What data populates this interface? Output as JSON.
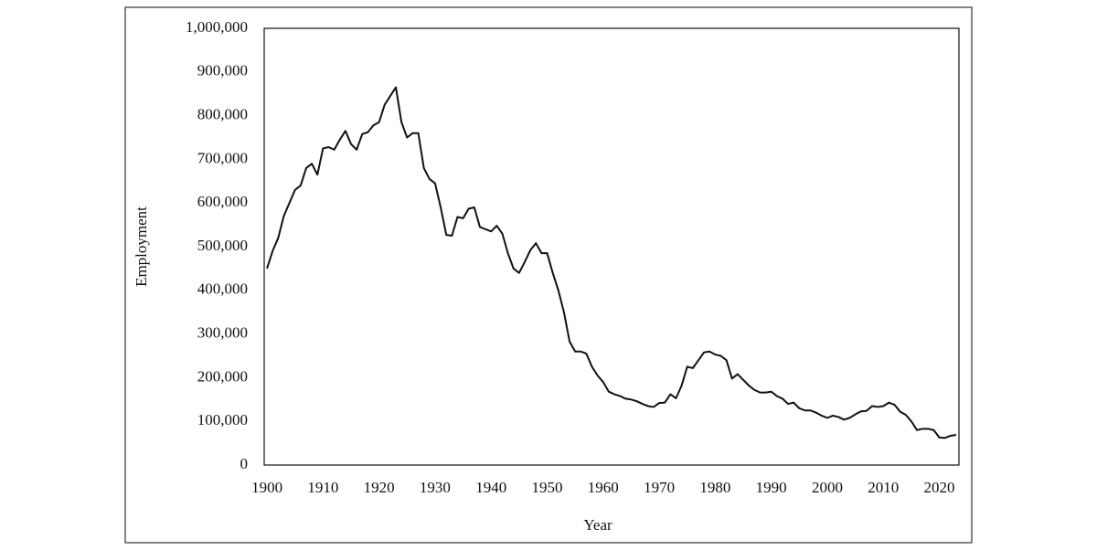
{
  "chart_data": {
    "type": "line",
    "x_label": "Year",
    "y_label": "Employment",
    "x": [
      1900,
      1901,
      1902,
      1903,
      1904,
      1905,
      1906,
      1907,
      1908,
      1909,
      1910,
      1911,
      1912,
      1913,
      1914,
      1915,
      1916,
      1917,
      1918,
      1919,
      1920,
      1921,
      1922,
      1923,
      1924,
      1925,
      1926,
      1927,
      1928,
      1929,
      1930,
      1931,
      1932,
      1933,
      1934,
      1935,
      1936,
      1937,
      1938,
      1939,
      1940,
      1941,
      1942,
      1943,
      1944,
      1945,
      1946,
      1947,
      1948,
      1949,
      1950,
      1951,
      1952,
      1953,
      1954,
      1955,
      1956,
      1957,
      1958,
      1959,
      1960,
      1961,
      1962,
      1963,
      1964,
      1965,
      1966,
      1967,
      1968,
      1969,
      1970,
      1971,
      1972,
      1973,
      1974,
      1975,
      1976,
      1977,
      1978,
      1979,
      1980,
      1981,
      1982,
      1983,
      1984,
      1985,
      1986,
      1987,
      1988,
      1989,
      1990,
      1991,
      1992,
      1993,
      1994,
      1995,
      1996,
      1997,
      1998,
      1999,
      2000,
      2001,
      2002,
      2003,
      2004,
      2005,
      2006,
      2007,
      2008,
      2009,
      2010,
      2011,
      2012,
      2013,
      2014,
      2015,
      2016,
      2017,
      2018,
      2019,
      2020,
      2021,
      2022,
      2023
    ],
    "values": [
      450000,
      490000,
      520000,
      570000,
      600000,
      630000,
      640000,
      680000,
      690000,
      665000,
      725000,
      728000,
      722000,
      745000,
      765000,
      735000,
      722000,
      758000,
      762000,
      778000,
      785000,
      825000,
      845000,
      865000,
      785000,
      750000,
      760000,
      760000,
      680000,
      655000,
      645000,
      590000,
      527000,
      525000,
      568000,
      565000,
      587000,
      590000,
      545000,
      540000,
      535000,
      548000,
      530000,
      485000,
      450000,
      440000,
      465000,
      492000,
      508000,
      485000,
      485000,
      440000,
      400000,
      350000,
      283000,
      260000,
      260000,
      255000,
      225000,
      205000,
      190000,
      168000,
      162000,
      158000,
      152000,
      150000,
      146000,
      140000,
      135000,
      133000,
      142000,
      143000,
      162000,
      153000,
      182000,
      225000,
      222000,
      240000,
      258000,
      260000,
      253000,
      250000,
      240000,
      198000,
      208000,
      195000,
      182000,
      172000,
      166000,
      166000,
      168000,
      158000,
      152000,
      140000,
      143000,
      130000,
      125000,
      125000,
      120000,
      113000,
      108000,
      113000,
      110000,
      104000,
      108000,
      116000,
      123000,
      124000,
      135000,
      133000,
      135000,
      143000,
      138000,
      122000,
      115000,
      100000,
      80000,
      83000,
      83000,
      80000,
      63000,
      62000,
      67000,
      69000
    ],
    "color": "#111111",
    "xlim": [
      1899.5,
      2023.5
    ],
    "xticks": [
      1900,
      1910,
      1920,
      1930,
      1940,
      1950,
      1960,
      1970,
      1980,
      1990,
      2000,
      2010,
      2020
    ],
    "ylim": [
      0,
      1000000
    ],
    "yticks": [
      0,
      {
        "value": 100000,
        "label": "100,000"
      },
      {
        "value": 200000,
        "label": "200,000"
      },
      {
        "value": 300000,
        "label": "300,000"
      },
      {
        "value": 400000,
        "label": "400,000"
      },
      {
        "value": 500000,
        "label": "500,000"
      },
      {
        "value": 600000,
        "label": "600,000"
      },
      {
        "value": 700000,
        "label": "700,000"
      },
      {
        "value": 800000,
        "label": "800,000"
      },
      {
        "value": 900000,
        "label": "900,000"
      },
      {
        "value": 1000000,
        "label": "1,000,000"
      }
    ],
    "grid": false
  }
}
